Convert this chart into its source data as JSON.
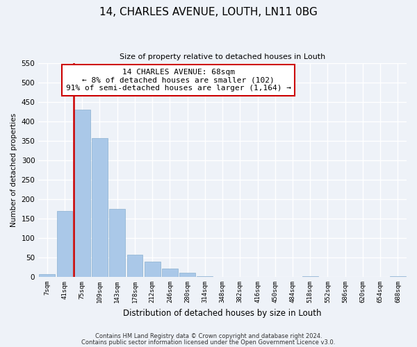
{
  "title": "14, CHARLES AVENUE, LOUTH, LN11 0BG",
  "subtitle": "Size of property relative to detached houses in Louth",
  "xlabel": "Distribution of detached houses by size in Louth",
  "ylabel": "Number of detached properties",
  "bar_labels": [
    "7sqm",
    "41sqm",
    "75sqm",
    "109sqm",
    "143sqm",
    "178sqm",
    "212sqm",
    "246sqm",
    "280sqm",
    "314sqm",
    "348sqm",
    "382sqm",
    "416sqm",
    "450sqm",
    "484sqm",
    "518sqm",
    "552sqm",
    "586sqm",
    "620sqm",
    "654sqm",
    "688sqm"
  ],
  "bar_heights": [
    8,
    170,
    430,
    357,
    175,
    57,
    40,
    22,
    10,
    2,
    0,
    0,
    0,
    0,
    0,
    1,
    0,
    0,
    0,
    0,
    1
  ],
  "bar_color": "#aac8e8",
  "vline_color": "#cc0000",
  "annotation_title": "14 CHARLES AVENUE: 68sqm",
  "annotation_line1": "← 8% of detached houses are smaller (102)",
  "annotation_line2": "91% of semi-detached houses are larger (1,164) →",
  "annotation_box_facecolor": "#ffffff",
  "annotation_box_edgecolor": "#cc0000",
  "ylim": [
    0,
    550
  ],
  "yticks": [
    0,
    50,
    100,
    150,
    200,
    250,
    300,
    350,
    400,
    450,
    500,
    550
  ],
  "footer1": "Contains HM Land Registry data © Crown copyright and database right 2024.",
  "footer2": "Contains public sector information licensed under the Open Government Licence v3.0.",
  "bg_color": "#eef2f8",
  "grid_color": "#ffffff"
}
